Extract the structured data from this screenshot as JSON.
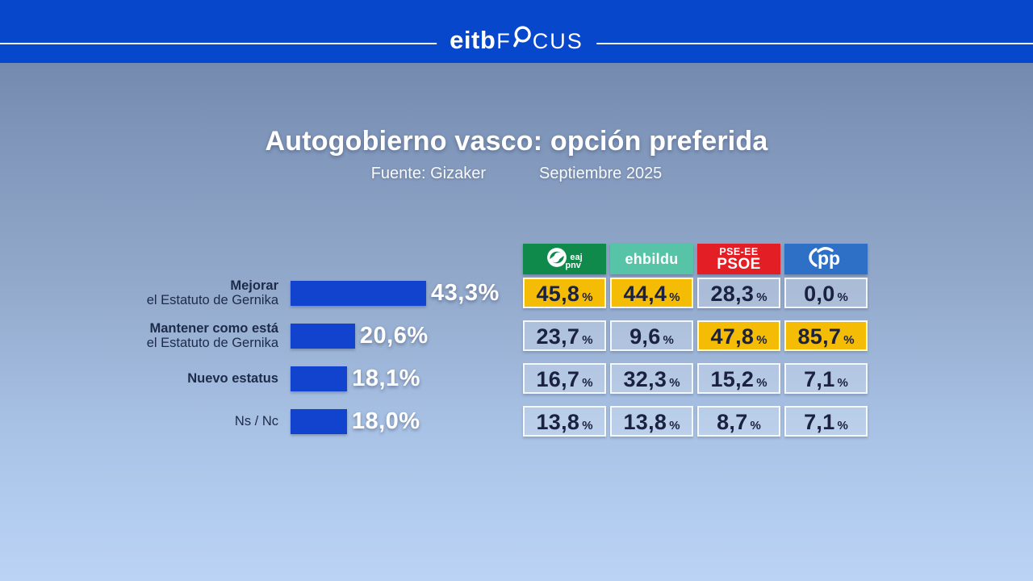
{
  "brand": {
    "left": "eitb",
    "focus_pre": "F",
    "focus_post": "CUS",
    "magnifier_icon": "magnifier-icon"
  },
  "percent": "%",
  "colors": {
    "topbar_blue": "#0747cb",
    "bar_blue": "#1243ce",
    "highlight_yellow": "#f4bc05",
    "pnv_green": "#0f8a4a",
    "ehbildu_teal": "#58c4a7",
    "psoe_red": "#e31e24",
    "pp_blue": "#2e70c5"
  },
  "parties": [
    {
      "id": "eaj-pnv",
      "label_top": "eaj",
      "label_bottom": "pnv",
      "color": "#0f8a4a"
    },
    {
      "id": "eh-bildu",
      "label": "ehbildu",
      "color": "#58c4a7"
    },
    {
      "id": "pse-ee-psoe",
      "label_top": "PSE-EE",
      "label_bottom": "PSOE",
      "color": "#e31e24"
    },
    {
      "id": "pp",
      "label": "pp",
      "color": "#2e70c5"
    }
  ],
  "chart_data": {
    "type": "bar",
    "orientation": "horizontal",
    "title": "Autogobierno vasco: opción preferida",
    "source": "Fuente: Gizaker",
    "period": "Septiembre 2025",
    "bar_color": "#1243ce",
    "highlight_color": "#f4bc05",
    "xlim": [
      0,
      50
    ],
    "categories": [
      "Mejorar el Estatuto de Gernika",
      "Mantener como está el Estatuto de Gernika",
      "Nuevo estatus",
      "Ns / Nc"
    ],
    "category_lines": [
      {
        "l1": "Mejorar",
        "l2": "el Estatuto de Gernika"
      },
      {
        "l1": "Mantener como está",
        "l2": "el Estatuto de Gernika"
      },
      {
        "l1": "Nuevo estatus",
        "l2": ""
      },
      {
        "l1": "Ns / Nc",
        "l2": ""
      }
    ],
    "values": [
      43.3,
      20.6,
      18.1,
      18.0
    ],
    "value_labels": [
      "43,3%",
      "20,6%",
      "18,1%",
      "18,0%"
    ],
    "breakdown_columns": [
      "EAJ-PNV",
      "EH Bildu",
      "PSE-EE PSOE",
      "PP"
    ],
    "breakdown": [
      {
        "category": "Mejorar el Estatuto de Gernika",
        "values": [
          45.8,
          44.4,
          28.3,
          0.0
        ],
        "labels": [
          "45,8",
          "44,4",
          "28,3",
          "0,0"
        ],
        "highlighted": [
          true,
          true,
          false,
          false
        ]
      },
      {
        "category": "Mantener como está el Estatuto de Gernika",
        "values": [
          23.7,
          9.6,
          47.8,
          85.7
        ],
        "labels": [
          "23,7",
          "9,6",
          "47,8",
          "85,7"
        ],
        "highlighted": [
          false,
          false,
          true,
          true
        ]
      },
      {
        "category": "Nuevo estatus",
        "values": [
          16.7,
          32.3,
          15.2,
          7.1
        ],
        "labels": [
          "16,7",
          "32,3",
          "15,2",
          "7,1"
        ],
        "highlighted": [
          false,
          false,
          false,
          false
        ]
      },
      {
        "category": "Ns / Nc",
        "values": [
          13.8,
          13.8,
          8.7,
          7.1
        ],
        "labels": [
          "13,8",
          "13,8",
          "8,7",
          "7,1"
        ],
        "highlighted": [
          false,
          false,
          false,
          false
        ]
      }
    ]
  }
}
